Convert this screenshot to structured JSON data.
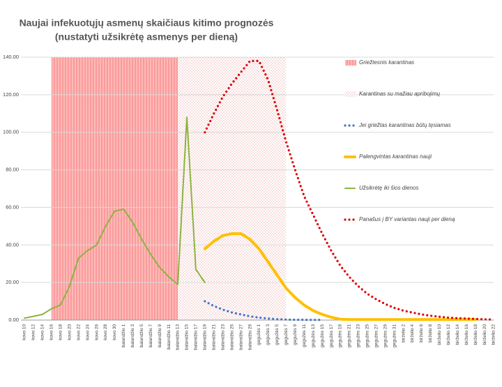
{
  "chart_data": {
    "type": "line",
    "title": "Naujai infekuotųjų asmenų skaičiaus kitimo prognozės",
    "subtitle": "(nustatyti užsikrėtę asmenys per dieną)",
    "categories": [
      "kovo 10",
      "kovo 12",
      "kovo 14",
      "kovo 16",
      "kovo 18",
      "kovo 20",
      "kovo 22",
      "kovo 24",
      "kovo 26",
      "kovo 28",
      "kovo 30",
      "balandžio 1",
      "balandžio 3",
      "balandžio 5",
      "balandžio 7",
      "balandžio 9",
      "balandžio 11",
      "balandžio 13",
      "balandžio 15",
      "balandžio 17",
      "balandžio 19",
      "balandžio 21",
      "balandžio 23",
      "balandžio 25",
      "balandžio 27",
      "balandžio 29",
      "gegužės 1",
      "gegužės 3",
      "gegužės 5",
      "gegužės 7",
      "gegužės 9",
      "gegužės 11",
      "gegužės 13",
      "gegužės 15",
      "gegužės 17",
      "gegužės 19",
      "gegužės 21",
      "gegužės 23",
      "gegužės 25",
      "gegužės 27",
      "gegužės 29",
      "gegužės 31",
      "birželio 2",
      "birželio 4",
      "birželio 6",
      "birželio 8",
      "birželio 10",
      "birželio 12",
      "birželio 14",
      "birželio 16",
      "birželio 18",
      "birželio 20",
      "birželio 22"
    ],
    "bands": [
      {
        "name": "Griežtesnis karantinas",
        "from": "kovo 16",
        "to": "balandžio 13",
        "color": "#ff9c9c",
        "style": "striped"
      },
      {
        "name": "Karantinas su mažiau apribojimų",
        "from": "balandžio 13",
        "to": "gegužės 7",
        "color": "#f2a0a0",
        "style": "dotted"
      }
    ],
    "series": [
      {
        "name": "Jei griežtas karantinas būtų tęsiamas",
        "color": "#4472c4",
        "style": "dotted",
        "values": [
          null,
          null,
          null,
          null,
          null,
          null,
          null,
          null,
          null,
          null,
          null,
          null,
          null,
          null,
          null,
          null,
          null,
          null,
          null,
          null,
          10,
          7.5,
          5.5,
          4,
          3,
          2,
          1.3,
          0.8,
          0.5,
          0.3,
          0.2,
          0.1,
          0.1,
          0.1,
          null,
          null,
          null,
          null,
          null,
          null,
          null,
          null,
          null,
          null,
          null,
          null,
          null,
          null,
          null,
          null,
          null,
          null,
          null
        ]
      },
      {
        "name": "Palengvintas karantinas nauji",
        "color": "#ffc000",
        "style": "solid",
        "values": [
          null,
          null,
          null,
          null,
          null,
          null,
          null,
          null,
          null,
          null,
          null,
          null,
          null,
          null,
          null,
          null,
          null,
          null,
          null,
          null,
          38,
          42,
          45,
          46,
          46,
          43,
          38,
          31,
          24,
          17,
          12,
          8,
          5,
          3,
          1.5,
          0.5,
          0.3,
          0.3,
          0.3,
          0.3,
          0.3,
          0.3,
          0.3,
          0.3,
          0.3,
          0.3,
          0.3,
          0.3,
          0.3,
          0.3,
          0.3,
          null,
          null
        ]
      },
      {
        "name": "Užsikrėtę iki šios dienos",
        "color": "#8db33f",
        "style": "solid",
        "values": [
          1,
          2,
          3,
          6,
          8,
          18,
          33,
          37,
          40,
          50,
          58,
          59,
          52,
          43,
          35,
          28,
          23,
          19,
          108,
          27,
          20,
          null,
          null,
          null,
          null,
          null,
          null,
          null,
          null,
          null,
          null,
          null,
          null,
          null,
          null,
          null,
          null,
          null,
          null,
          null,
          null,
          null,
          null,
          null,
          null,
          null,
          null,
          null,
          null,
          null,
          null,
          null,
          null
        ]
      },
      {
        "name": "Panašus į BY variantas nauji per dieną",
        "color": "#e00000",
        "style": "dotted",
        "values": [
          null,
          null,
          null,
          null,
          null,
          null,
          null,
          null,
          null,
          null,
          null,
          null,
          null,
          null,
          null,
          null,
          null,
          null,
          null,
          null,
          100,
          110,
          119,
          126,
          132,
          138,
          138,
          128,
          112,
          95,
          80,
          66,
          56,
          46,
          37,
          29,
          23,
          18,
          14,
          11,
          8.5,
          6.5,
          5,
          4,
          3,
          2.3,
          1.8,
          1.3,
          1,
          0.8,
          0.6,
          0.4,
          0.3
        ]
      }
    ],
    "legend_order": [
      "band:0",
      "band:1",
      "series:0",
      "series:1",
      "series:2",
      "series:3"
    ],
    "ylim": [
      0,
      140
    ],
    "yticks": [
      {
        "value": 0,
        "label": "0.00"
      },
      {
        "value": 20,
        "label": "20.00"
      },
      {
        "value": 40,
        "label": "40.00"
      },
      {
        "value": 60,
        "label": "60.00"
      },
      {
        "value": 80,
        "label": "80.00"
      },
      {
        "value": 100,
        "label": "100.00"
      },
      {
        "value": 120,
        "label": "120.00"
      },
      {
        "value": 140,
        "label": "140.00"
      }
    ],
    "grid": true,
    "legend": "right"
  }
}
